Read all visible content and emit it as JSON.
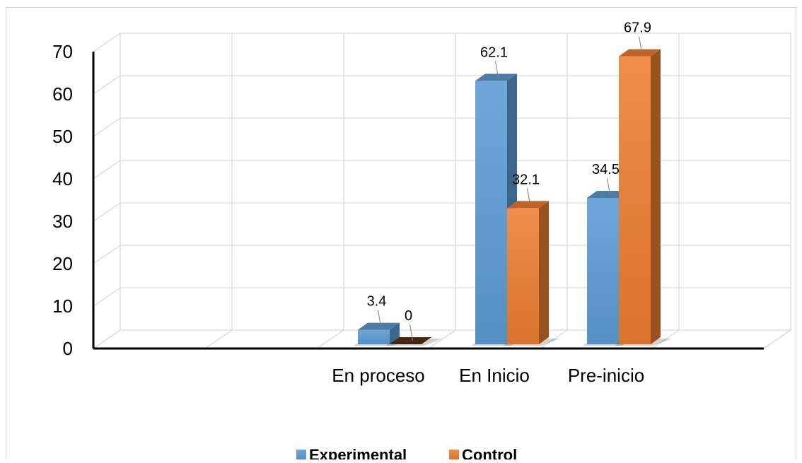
{
  "chart_data": {
    "type": "bar",
    "style": "3d-clustered-column",
    "categories": [
      "",
      "",
      "En proceso",
      "En Inicio",
      "Pre-inicio",
      ""
    ],
    "series": [
      {
        "name": "Experimental",
        "values": [
          null,
          null,
          3.4,
          62.1,
          34.5,
          null
        ],
        "color": "#5b9bd5"
      },
      {
        "name": "Control",
        "values": [
          null,
          null,
          0,
          32.1,
          67.9,
          null
        ],
        "color": "#ed7d31"
      }
    ],
    "data_labels": {
      "Experimental": [
        "",
        "",
        "3.4",
        "62.1",
        "34.5",
        ""
      ],
      "Control": [
        "",
        "",
        "0",
        "32.1",
        "67.9",
        ""
      ]
    },
    "y_ticks": [
      "0",
      "10",
      "20",
      "30",
      "40",
      "50",
      "60",
      "70"
    ],
    "ylim": [
      0,
      70
    ],
    "grid": true,
    "legend_position": "bottom"
  }
}
